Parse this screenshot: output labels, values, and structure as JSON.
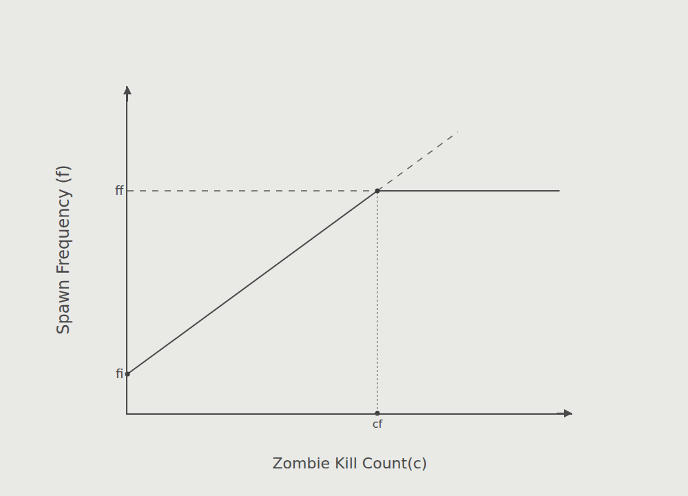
{
  "chart_data": {
    "type": "line",
    "x_label": "Zombie Kill Count(c)",
    "y_label": "Spawn Frequency (f)",
    "xlim": [
      0,
      10.5
    ],
    "ylim": [
      0,
      10
    ],
    "xticks": [
      {
        "value": 5.9,
        "label": "cf"
      }
    ],
    "yticks": [
      {
        "value": 1.2,
        "label": "fi"
      },
      {
        "value": 6.8,
        "label": "ff"
      }
    ],
    "grid": false,
    "series": [
      {
        "x": [
          0,
          5.9,
          10.2
        ],
        "values": [
          1.2,
          6.8,
          6.8
        ],
        "color": "#4a4a4a",
        "line_style": "solid",
        "marker": "none"
      },
      {
        "x": [
          5.9,
          7.8
        ],
        "values": [
          6.8,
          8.6
        ],
        "color": "#5a5a5a",
        "line_style": "dash",
        "marker": "none"
      },
      {
        "x": [
          0,
          5.9
        ],
        "values": [
          6.8,
          6.8
        ],
        "color": "#5a5a5a",
        "line_style": "dash",
        "marker": "none"
      },
      {
        "x": [
          5.9,
          5.9
        ],
        "values": [
          0,
          6.8
        ],
        "color": "#8a8a8a",
        "line_style": "dot",
        "marker": "none"
      },
      {
        "type": "scatter",
        "x": [
          0,
          5.9,
          5.9
        ],
        "values": [
          1.2,
          6.8,
          0
        ],
        "color": "#3a3a3a",
        "marker": "circle"
      }
    ]
  }
}
